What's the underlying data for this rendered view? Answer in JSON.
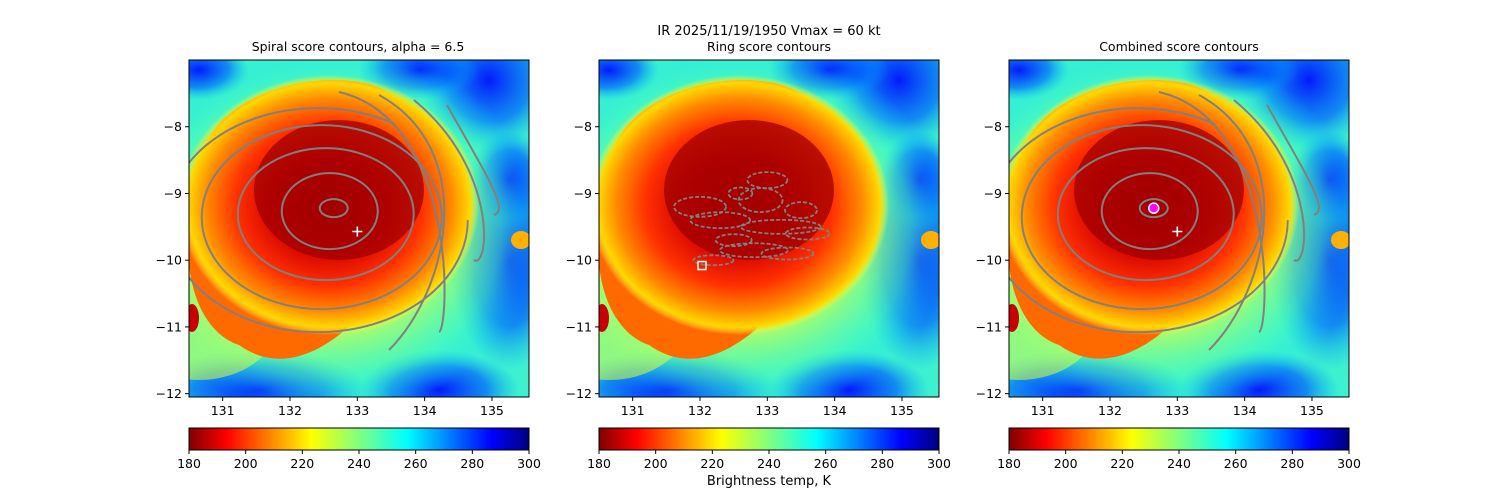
{
  "figure": {
    "suptitle": "IR  2025/11/19/1950    Vmax = 60 kt",
    "colorbar_label": "Brightness temp, K"
  },
  "chart_data": [
    {
      "type": "heatmap",
      "title": "Spiral score contours, alpha =  6.5",
      "colormap": "jet_r",
      "xlim": [
        130.5,
        135.55
      ],
      "ylim": [
        -12.05,
        -7.0
      ],
      "xticks": [
        131,
        132,
        133,
        134,
        135
      ],
      "yticks": [
        -8,
        -9,
        -10,
        -11,
        -12
      ],
      "contour_color": "#808080",
      "colorbar": {
        "min": 180,
        "max": 300,
        "ticks": [
          180,
          200,
          220,
          240,
          260,
          280,
          300
        ]
      },
      "markers": [
        {
          "kind": "plus",
          "lon": 133.0,
          "lat": -9.57,
          "color": "#ffffff"
        }
      ]
    },
    {
      "type": "heatmap",
      "title": "Ring score contours",
      "colormap": "jet_r",
      "xlim": [
        130.5,
        135.55
      ],
      "ylim": [
        -12.05,
        -7.0
      ],
      "xticks": [
        131,
        132,
        133,
        134,
        135
      ],
      "yticks": [
        -8,
        -9,
        -10,
        -11,
        -12
      ],
      "contour_color": "#808080",
      "colorbar": {
        "min": 180,
        "max": 300,
        "ticks": [
          180,
          200,
          220,
          240,
          260,
          280,
          300
        ]
      },
      "markers": [
        {
          "kind": "square",
          "lon": 132.03,
          "lat": -10.08,
          "color": "#ffffff"
        }
      ]
    },
    {
      "type": "heatmap",
      "title": "Combined score contours",
      "colormap": "jet_r",
      "xlim": [
        130.5,
        135.55
      ],
      "ylim": [
        -12.05,
        -7.0
      ],
      "xticks": [
        131,
        132,
        133,
        134,
        135
      ],
      "yticks": [
        -8,
        -9,
        -10,
        -11,
        -12
      ],
      "contour_color": "#808080",
      "colorbar": {
        "min": 180,
        "max": 300,
        "ticks": [
          180,
          200,
          220,
          240,
          260,
          280,
          300
        ]
      },
      "markers": [
        {
          "kind": "plus",
          "lon": 133.0,
          "lat": -9.57,
          "color": "#ffffff"
        },
        {
          "kind": "circle",
          "lon": 132.65,
          "lat": -9.22,
          "color": "#ff00ff"
        }
      ]
    }
  ]
}
